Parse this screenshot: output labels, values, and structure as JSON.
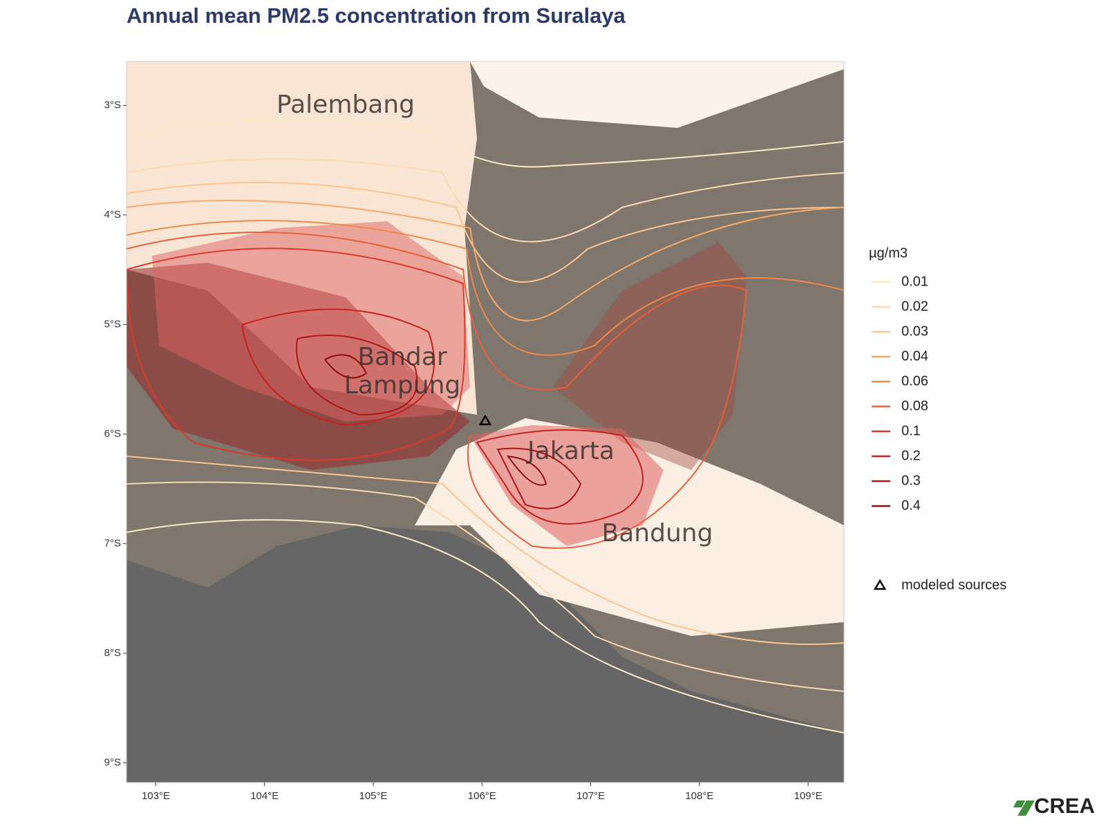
{
  "chart_data": {
    "type": "map",
    "title": "Annual mean PM2.5 concentration from Suralaya",
    "xlim": [
      102.73,
      109.33
    ],
    "ylim": [
      -9.18,
      -2.6
    ],
    "xticks": [
      {
        "value": 103,
        "label": "103°E"
      },
      {
        "value": 104,
        "label": "104°E"
      },
      {
        "value": 105,
        "label": "105°E"
      },
      {
        "value": 106,
        "label": "106°E"
      },
      {
        "value": 107,
        "label": "107°E"
      },
      {
        "value": 108,
        "label": "108°E"
      },
      {
        "value": 109,
        "label": "109°E"
      }
    ],
    "yticks": [
      {
        "value": -3,
        "label": "3°S"
      },
      {
        "value": -4,
        "label": "4°S"
      },
      {
        "value": -5,
        "label": "5°S"
      },
      {
        "value": -6,
        "label": "6°S"
      },
      {
        "value": -7,
        "label": "7°S"
      },
      {
        "value": -8,
        "label": "8°S"
      },
      {
        "value": -9,
        "label": "9°S"
      }
    ],
    "places": [
      "Palembang",
      "Bandar\nLampung",
      "Jakarta",
      "Bandung"
    ],
    "legend_title": "µg/m3",
    "levels": [
      {
        "value": 0.01,
        "color": "#fde9c6"
      },
      {
        "value": 0.02,
        "color": "#fbdab2"
      },
      {
        "value": 0.03,
        "color": "#fbc690"
      },
      {
        "value": 0.04,
        "color": "#f9a866"
      },
      {
        "value": 0.06,
        "color": "#ef8a48"
      },
      {
        "value": 0.08,
        "color": "#e7603a"
      },
      {
        "value": 0.1,
        "color": "#d93a2b"
      },
      {
        "value": 0.2,
        "color": "#c8201c"
      },
      {
        "value": 0.3,
        "color": "#b01515"
      },
      {
        "value": 0.4,
        "color": "#8f1010"
      }
    ],
    "sources": {
      "name": "modeled sources",
      "lon": [
        106.03
      ],
      "lat": [
        -5.88
      ]
    },
    "logo": "CREA"
  }
}
